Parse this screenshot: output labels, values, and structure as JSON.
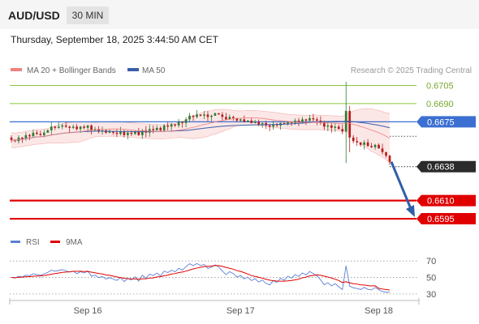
{
  "header": {
    "symbol": "AUD/USD",
    "timeframe": "30 MIN",
    "datetime": "Thursday, September 18, 2025 3:44:50 AM CET",
    "copyright": "Research © 2025 Trading Central"
  },
  "colors": {
    "bollinger": "#f08080",
    "bollinger_fill": "#f9d3d3",
    "ma50": "#3a5ea8",
    "level_green": "#8cc63f",
    "current_line": "#3b6fd1",
    "support_red": "#e00000",
    "candle_up": "#2e7d32",
    "candle_down": "#b71c1c",
    "arrow": "#2f5ea8",
    "rsi": "#5b7fd6",
    "rsi_ma": "#e00000"
  },
  "legend": {
    "bollinger_label": "MA 20 + Bollinger Bands",
    "ma50_label": "MA 50",
    "rsi_label": "RSI",
    "rsi_ma_label": "9MA"
  },
  "chart_data": [
    {
      "type": "candlestick",
      "name": "price",
      "ylim": [
        0.6585,
        0.6712
      ],
      "x_ticks": [
        "Sep 16",
        "Sep 17",
        "Sep 18"
      ],
      "x_tick_index": [
        21,
        63,
        101
      ],
      "levels": [
        {
          "value": 0.6705,
          "label": "0.6705",
          "kind": "resistance"
        },
        {
          "value": 0.669,
          "label": "0.6690",
          "kind": "resistance"
        },
        {
          "value": 0.6675,
          "label": "0.6675",
          "kind": "pivot"
        },
        {
          "value": 0.6638,
          "label": "0.6638",
          "kind": "current"
        },
        {
          "value": 0.661,
          "label": "0.6610",
          "kind": "support"
        },
        {
          "value": 0.6595,
          "label": "0.6595",
          "kind": "support"
        }
      ],
      "closes": [
        0.666,
        0.6659,
        0.6662,
        0.6661,
        0.6664,
        0.6663,
        0.6666,
        0.6665,
        0.6664,
        0.6666,
        0.6668,
        0.6671,
        0.667,
        0.6671,
        0.6672,
        0.6671,
        0.667,
        0.6671,
        0.6669,
        0.6671,
        0.667,
        0.6672,
        0.6668,
        0.6669,
        0.6667,
        0.6668,
        0.6666,
        0.6667,
        0.6666,
        0.6665,
        0.6667,
        0.6664,
        0.6666,
        0.6665,
        0.6667,
        0.6664,
        0.6668,
        0.6666,
        0.6669,
        0.6668,
        0.667,
        0.6668,
        0.6672,
        0.6671,
        0.6673,
        0.6672,
        0.6675,
        0.6674,
        0.6677,
        0.668,
        0.6679,
        0.6681,
        0.668,
        0.6681,
        0.6679,
        0.668,
        0.6682,
        0.6681,
        0.6679,
        0.6677,
        0.6679,
        0.6678,
        0.6676,
        0.6677,
        0.6675,
        0.6676,
        0.6674,
        0.6675,
        0.6673,
        0.6674,
        0.6672,
        0.6671,
        0.6673,
        0.6672,
        0.6674,
        0.6673,
        0.6675,
        0.6674,
        0.6676,
        0.6675,
        0.6677,
        0.6676,
        0.6678,
        0.6677,
        0.6676,
        0.6674,
        0.6671,
        0.6672,
        0.667,
        0.6671,
        0.6669,
        0.6667,
        0.6684,
        0.6662,
        0.6659,
        0.6658,
        0.6656,
        0.6658,
        0.6655,
        0.6654,
        0.6656,
        0.6653,
        0.665,
        0.6647,
        0.6642
      ],
      "highs_lows_note": "wicks: major spike high 0.6708, low 0.6641 near index 92"
    },
    {
      "type": "line",
      "name": "rsi",
      "ylim": [
        25,
        80
      ],
      "ticks": [
        70,
        50,
        30
      ],
      "tick_labels": [
        "70",
        "50",
        "30"
      ]
    }
  ]
}
